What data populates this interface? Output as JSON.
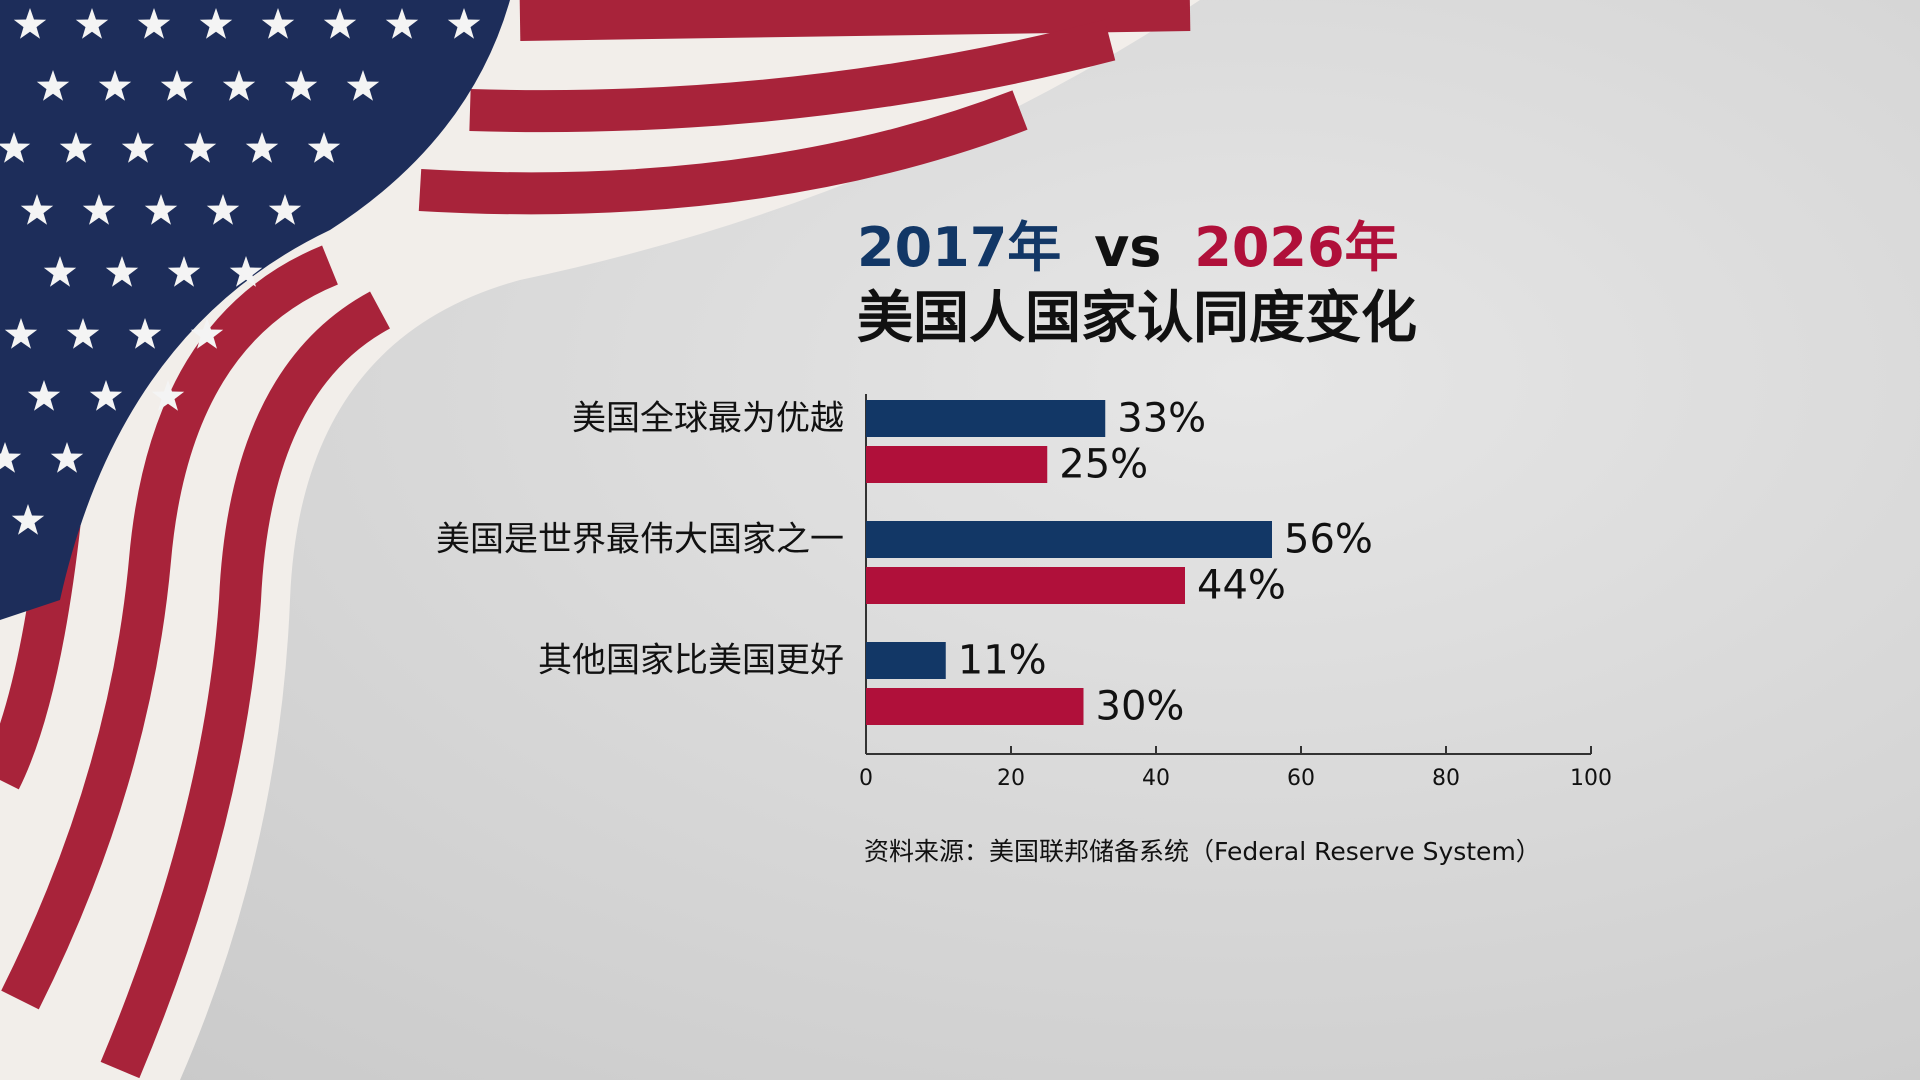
{
  "chart_data": {
    "type": "bar",
    "orientation": "horizontal",
    "title_connector": "vs",
    "title": "美国人国家认同度变化",
    "categories": [
      "美国全球最为优越",
      "美国是世界最伟大国家之一",
      "其他国家比美国更好"
    ],
    "series": [
      {
        "name": "2017年",
        "color": "#123766",
        "values": [
          33,
          56,
          11
        ],
        "value_labels": [
          "33%",
          "56%",
          "11%"
        ]
      },
      {
        "name": "2026年",
        "color": "#b0103a",
        "values": [
          25,
          44,
          30
        ],
        "value_labels": [
          "25%",
          "44%",
          "30%"
        ]
      }
    ],
    "xlim": [
      0,
      100
    ],
    "xticks": [
      0,
      20,
      40,
      60,
      80,
      100
    ],
    "grid": false,
    "source": "资料来源：美国联邦储备系统（Federal Reserve System）"
  }
}
